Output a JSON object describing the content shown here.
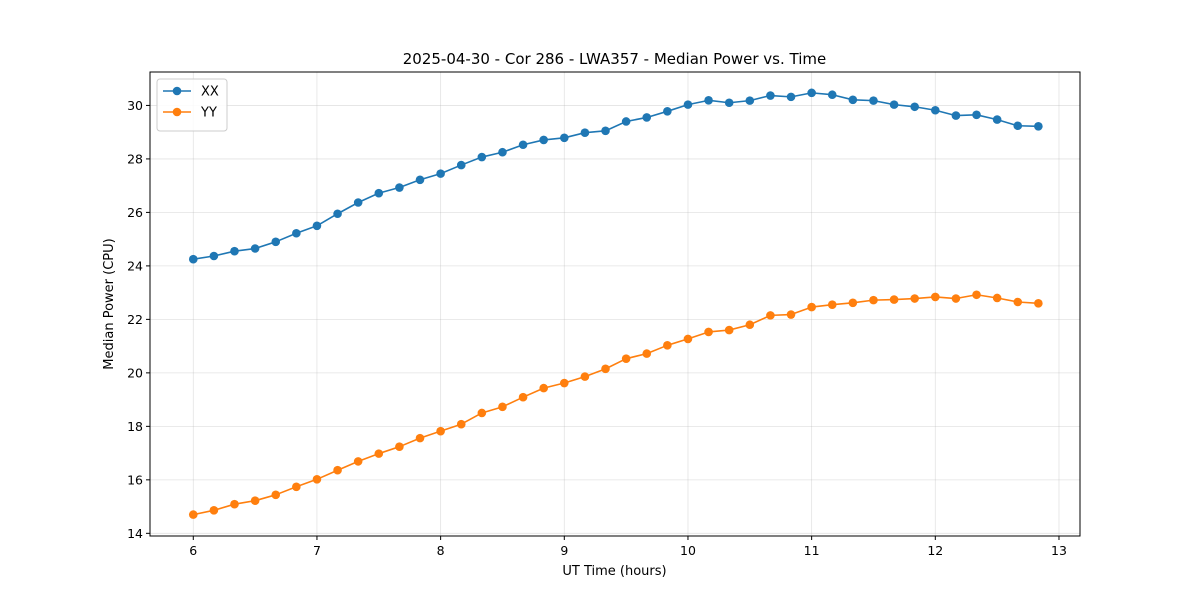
{
  "chart_data": {
    "type": "line",
    "title": "2025-04-30 - Cor 286 - LWA357 - Median Power vs. Time",
    "xlabel": "UT Time (hours)",
    "ylabel": "Median Power (CPU)",
    "xlim": [
      5.65,
      13.17
    ],
    "ylim": [
      13.9,
      31.25
    ],
    "xticks": [
      6,
      7,
      8,
      9,
      10,
      11,
      12,
      13
    ],
    "yticks": [
      14,
      16,
      18,
      20,
      22,
      24,
      26,
      28,
      30
    ],
    "grid": true,
    "legend_position": "top-left",
    "x": [
      6.0,
      6.1667,
      6.3333,
      6.5,
      6.6667,
      6.8333,
      7.0,
      7.1667,
      7.3333,
      7.5,
      7.6667,
      7.8333,
      8.0,
      8.1667,
      8.3333,
      8.5,
      8.6667,
      8.8333,
      9.0,
      9.1667,
      9.3333,
      9.5,
      9.6667,
      9.8333,
      10.0,
      10.1667,
      10.3333,
      10.5,
      10.6667,
      10.8333,
      11.0,
      11.1667,
      11.3333,
      11.5,
      11.6667,
      11.8333,
      12.0,
      12.1667,
      12.3333,
      12.5,
      12.6667,
      12.8333
    ],
    "series": [
      {
        "name": "XX",
        "color": "#1f77b4",
        "values": [
          24.25,
          24.37,
          24.55,
          24.65,
          24.9,
          25.22,
          25.5,
          25.95,
          26.37,
          26.72,
          26.93,
          27.22,
          27.45,
          27.77,
          28.07,
          28.25,
          28.53,
          28.71,
          28.79,
          28.98,
          29.05,
          29.4,
          29.55,
          29.78,
          30.03,
          30.19,
          30.1,
          30.18,
          30.37,
          30.32,
          30.47,
          30.4,
          30.21,
          30.18,
          30.03,
          29.95,
          29.82,
          29.62,
          29.65,
          29.47,
          29.24,
          29.22
        ]
      },
      {
        "name": "YY",
        "color": "#ff7f0e",
        "values": [
          14.7,
          14.86,
          15.09,
          15.22,
          15.44,
          15.74,
          16.02,
          16.36,
          16.69,
          16.98,
          17.24,
          17.56,
          17.82,
          18.08,
          18.5,
          18.73,
          19.09,
          19.43,
          19.62,
          19.86,
          20.15,
          20.53,
          20.72,
          21.03,
          21.27,
          21.53,
          21.6,
          21.8,
          22.15,
          22.18,
          22.46,
          22.55,
          22.62,
          22.72,
          22.74,
          22.78,
          22.84,
          22.78,
          22.92,
          22.8,
          22.65,
          22.6
        ]
      }
    ]
  }
}
